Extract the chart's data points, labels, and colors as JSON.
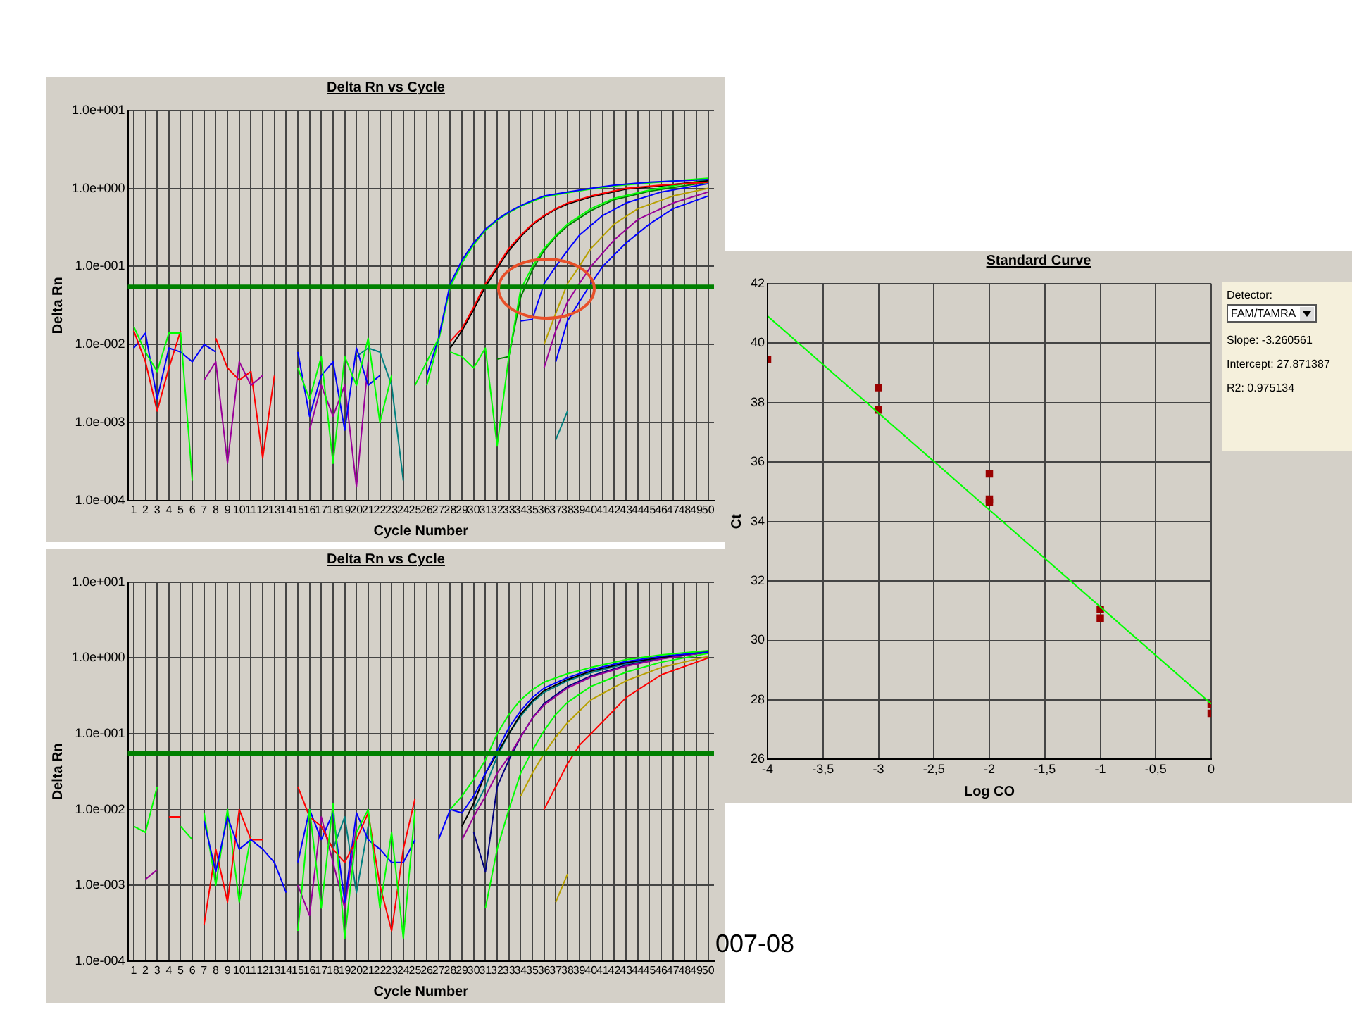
{
  "chart_data": [
    {
      "type": "line",
      "title": "Delta Rn vs Cycle",
      "xlabel": "Cycle Number",
      "ylabel": "Delta Rn",
      "log": "y",
      "grid": true,
      "legend": false,
      "marker": "none",
      "xlim": [
        0.5,
        50.5
      ],
      "xticks": [
        1,
        2,
        3,
        4,
        5,
        6,
        7,
        8,
        9,
        10,
        11,
        12,
        13,
        14,
        15,
        16,
        17,
        18,
        19,
        20,
        21,
        22,
        23,
        24,
        25,
        26,
        27,
        28,
        29,
        30,
        31,
        32,
        33,
        34,
        35,
        36,
        37,
        38,
        39,
        40,
        41,
        42,
        43,
        44,
        45,
        46,
        47,
        48,
        49,
        50
      ],
      "ylim": [
        0.0001,
        10
      ],
      "yticks": [
        {
          "value": 0.0001,
          "label": "1.0e-004"
        },
        {
          "value": 0.001,
          "label": "1.0e-003"
        },
        {
          "value": 0.01,
          "label": "1.0e-002"
        },
        {
          "value": 0.1,
          "label": "1.0e-001"
        },
        {
          "value": 1,
          "label": "1.0e+000"
        },
        {
          "value": 10,
          "label": "1.0e+001"
        }
      ],
      "ref_lines": [
        {
          "axis": "y",
          "value": 0.055,
          "color": "#008000"
        }
      ],
      "series": [
        {
          "color": "#00ff00",
          "x": [
            1,
            2,
            3,
            4,
            5,
            6
          ],
          "values": [
            0.017,
            0.008,
            0.0045,
            0.014,
            0.014,
            0.00018
          ]
        },
        {
          "color": "#ff0000",
          "x": [
            1,
            2,
            3,
            4,
            5
          ],
          "values": [
            0.015,
            0.006,
            0.0014,
            0.005,
            0.015
          ]
        },
        {
          "color": "#0000ff",
          "x": [
            1,
            2,
            3,
            4,
            5,
            6,
            7,
            8
          ],
          "values": [
            0.009,
            0.014,
            0.002,
            0.009,
            0.008,
            0.006,
            0.01,
            0.008
          ]
        },
        {
          "color": "#990099",
          "x": [
            7,
            8,
            9,
            10,
            11,
            12
          ],
          "values": [
            0.0035,
            0.006,
            0.0003,
            0.006,
            0.003,
            0.004
          ]
        },
        {
          "color": "#ff0000",
          "x": [
            8,
            9,
            10,
            11,
            12,
            13
          ],
          "values": [
            0.012,
            0.005,
            0.0035,
            0.0045,
            0.00035,
            0.004
          ]
        },
        {
          "color": "#00ff00",
          "x": [
            15,
            16,
            17,
            18,
            19,
            20,
            21,
            22,
            23
          ],
          "values": [
            0.005,
            0.002,
            0.007,
            0.0003,
            0.007,
            0.003,
            0.012,
            0.001,
            0.004
          ]
        },
        {
          "color": "#0000ff",
          "x": [
            15,
            16,
            17,
            18,
            19,
            20,
            21,
            22
          ],
          "values": [
            0.008,
            0.0012,
            0.004,
            0.006,
            0.0008,
            0.009,
            0.003,
            0.004
          ]
        },
        {
          "color": "#990099",
          "x": [
            16,
            17,
            18,
            19,
            20,
            21
          ],
          "values": [
            0.0008,
            0.003,
            0.0012,
            0.003,
            0.00015,
            0.006
          ]
        },
        {
          "color": "#008080",
          "x": [
            20,
            21,
            22,
            23,
            24
          ],
          "values": [
            0.007,
            0.009,
            0.008,
            0.003,
            0.00018
          ]
        },
        {
          "color": "#00ff00",
          "x": [
            25,
            26,
            27
          ],
          "values": [
            0.003,
            0.006,
            0.012
          ]
        },
        {
          "color": "#0000ff",
          "x": [
            26,
            27,
            28,
            29,
            30,
            31,
            32,
            33,
            34,
            35,
            36,
            38,
            40,
            42,
            45,
            50
          ],
          "values": [
            0.004,
            0.012,
            0.06,
            0.12,
            0.2,
            0.3,
            0.4,
            0.5,
            0.6,
            0.7,
            0.8,
            0.9,
            1.0,
            1.1,
            1.2,
            1.3
          ]
        },
        {
          "color": "#00ff00",
          "x": [
            26,
            27,
            28,
            29,
            30,
            31,
            32,
            33,
            34,
            35,
            36,
            38,
            40,
            42,
            45,
            50
          ],
          "values": [
            0.003,
            0.011,
            0.055,
            0.11,
            0.19,
            0.29,
            0.39,
            0.49,
            0.59,
            0.68,
            0.78,
            0.88,
            0.98,
            1.08,
            1.18,
            1.35
          ]
        },
        {
          "color": "#ff0000",
          "x": [
            28,
            29,
            30,
            31,
            32,
            33,
            34,
            35,
            36,
            37,
            38,
            40,
            43,
            46,
            50
          ],
          "values": [
            0.011,
            0.016,
            0.03,
            0.06,
            0.1,
            0.17,
            0.25,
            0.35,
            0.45,
            0.55,
            0.65,
            0.8,
            1.0,
            1.1,
            1.2
          ]
        },
        {
          "color": "#000000",
          "x": [
            28,
            29,
            30,
            31,
            32,
            33,
            34,
            35,
            36,
            37,
            38,
            40,
            43,
            46,
            50
          ],
          "values": [
            0.009,
            0.015,
            0.028,
            0.055,
            0.095,
            0.16,
            0.24,
            0.34,
            0.44,
            0.54,
            0.63,
            0.78,
            0.98,
            1.08,
            1.25
          ]
        },
        {
          "color": "#00ff00",
          "x": [
            28,
            29,
            30,
            31,
            32,
            33,
            34,
            35,
            36,
            37,
            38,
            40,
            42,
            45,
            50
          ],
          "values": [
            0.008,
            0.007,
            0.005,
            0.009,
            0.0005,
            0.007,
            0.05,
            0.1,
            0.17,
            0.25,
            0.35,
            0.55,
            0.75,
            0.95,
            1.3
          ]
        },
        {
          "color": "#008000",
          "x": [
            32,
            33,
            34,
            35,
            36,
            37,
            38,
            40,
            42,
            45,
            50
          ],
          "values": [
            0.0065,
            0.007,
            0.04,
            0.09,
            0.16,
            0.24,
            0.33,
            0.52,
            0.72,
            0.92,
            1.2
          ]
        },
        {
          "color": "#0000ff",
          "x": [
            34,
            35,
            36,
            37,
            38,
            39,
            41,
            43,
            46,
            50
          ],
          "values": [
            0.02,
            0.021,
            0.06,
            0.1,
            0.16,
            0.25,
            0.45,
            0.65,
            0.9,
            1.15
          ]
        },
        {
          "color": "#b8a000",
          "x": [
            36,
            37,
            38,
            39,
            40,
            42,
            44,
            47,
            50
          ],
          "values": [
            0.01,
            0.025,
            0.06,
            0.1,
            0.17,
            0.35,
            0.55,
            0.8,
            1.0
          ]
        },
        {
          "color": "#990099",
          "x": [
            36,
            37,
            38,
            39,
            40,
            42,
            44,
            47,
            50
          ],
          "values": [
            0.005,
            0.015,
            0.035,
            0.06,
            0.1,
            0.22,
            0.4,
            0.65,
            0.9
          ]
        },
        {
          "color": "#0000ff",
          "x": [
            37,
            38,
            39,
            40,
            41,
            43,
            45,
            47,
            50
          ],
          "values": [
            0.006,
            0.02,
            0.035,
            0.06,
            0.1,
            0.2,
            0.35,
            0.55,
            0.8
          ]
        },
        {
          "color": "#008080",
          "x": [
            37,
            38
          ],
          "values": [
            0.0006,
            0.0014
          ]
        }
      ]
    },
    {
      "type": "line",
      "title": "Delta Rn vs Cycle",
      "xlabel": "Cycle Number",
      "ylabel": "Delta Rn",
      "log": "y",
      "grid": true,
      "legend": false,
      "marker": "none",
      "xlim": [
        0.5,
        50.5
      ],
      "xticks": [
        1,
        2,
        3,
        4,
        5,
        6,
        7,
        8,
        9,
        10,
        11,
        12,
        13,
        14,
        15,
        16,
        17,
        18,
        19,
        20,
        21,
        22,
        23,
        24,
        25,
        26,
        27,
        28,
        29,
        30,
        31,
        32,
        33,
        34,
        35,
        36,
        37,
        38,
        39,
        40,
        41,
        42,
        43,
        44,
        45,
        46,
        47,
        48,
        49,
        50
      ],
      "ylim": [
        0.0001,
        10
      ],
      "yticks": [
        {
          "value": 0.0001,
          "label": "1.0e-004"
        },
        {
          "value": 0.001,
          "label": "1.0e-003"
        },
        {
          "value": 0.01,
          "label": "1.0e-002"
        },
        {
          "value": 0.1,
          "label": "1.0e-001"
        },
        {
          "value": 1,
          "label": "1.0e+000"
        },
        {
          "value": 10,
          "label": "1.0e+001"
        }
      ],
      "ref_lines": [
        {
          "axis": "y",
          "value": 0.055,
          "color": "#008000"
        }
      ],
      "annotations": [
        "007-08"
      ],
      "series": [
        {
          "color": "#00ff00",
          "x": [
            1,
            2,
            3
          ],
          "values": [
            0.006,
            0.005,
            0.02
          ]
        },
        {
          "color": "#990099",
          "x": [
            2,
            3
          ],
          "values": [
            0.0012,
            0.0016
          ]
        },
        {
          "color": "#ff0000",
          "x": [
            4,
            5
          ],
          "values": [
            0.008,
            0.008
          ]
        },
        {
          "color": "#00ff00",
          "x": [
            5,
            6
          ],
          "values": [
            0.006,
            0.004
          ]
        },
        {
          "color": "#0000ff",
          "x": [
            7,
            8,
            9,
            10,
            11,
            12,
            13,
            14
          ],
          "values": [
            0.007,
            0.0015,
            0.008,
            0.003,
            0.004,
            0.003,
            0.002,
            0.0008
          ]
        },
        {
          "color": "#ff0000",
          "x": [
            7,
            8,
            9,
            10,
            11,
            12
          ],
          "values": [
            0.0003,
            0.003,
            0.0006,
            0.01,
            0.004,
            0.004
          ]
        },
        {
          "color": "#00ff00",
          "x": [
            7,
            8,
            9,
            10,
            11
          ],
          "values": [
            0.009,
            0.001,
            0.01,
            0.0006,
            0.0045
          ]
        },
        {
          "color": "#00ff00",
          "x": [
            15,
            16,
            17,
            18,
            19,
            20,
            21,
            22,
            23,
            24,
            25
          ],
          "values": [
            0.00025,
            0.01,
            0.0005,
            0.012,
            0.0002,
            0.005,
            0.01,
            0.0005,
            0.005,
            0.0002,
            0.01
          ]
        },
        {
          "color": "#ff0000",
          "x": [
            15,
            16,
            17,
            18,
            19,
            20,
            21,
            22,
            23,
            24,
            25
          ],
          "values": [
            0.02,
            0.008,
            0.006,
            0.003,
            0.002,
            0.004,
            0.009,
            0.001,
            0.00025,
            0.003,
            0.014
          ]
        },
        {
          "color": "#0000ff",
          "x": [
            15,
            16,
            17,
            18,
            19,
            20,
            21,
            22,
            23,
            24,
            25
          ],
          "values": [
            0.002,
            0.01,
            0.004,
            0.009,
            0.0006,
            0.009,
            0.004,
            0.003,
            0.002,
            0.002,
            0.004
          ]
        },
        {
          "color": "#990099",
          "x": [
            15,
            16,
            17,
            18,
            19,
            20
          ],
          "values": [
            0.001,
            0.0004,
            0.008,
            0.002,
            0.0005,
            0.006
          ]
        },
        {
          "color": "#008080",
          "x": [
            17,
            18,
            19,
            20,
            21
          ],
          "values": [
            0.006,
            0.003,
            0.008,
            0.0008,
            0.006
          ]
        },
        {
          "color": "#00ff00",
          "x": [
            28,
            29,
            30,
            31,
            32,
            33,
            34,
            35,
            36,
            38,
            40,
            43,
            46,
            50
          ],
          "values": [
            0.01,
            0.015,
            0.025,
            0.045,
            0.1,
            0.18,
            0.28,
            0.38,
            0.48,
            0.62,
            0.75,
            0.95,
            1.1,
            1.25
          ]
        },
        {
          "color": "#0000ff",
          "x": [
            27,
            28,
            29,
            30,
            31,
            32,
            33,
            34,
            35,
            36,
            38,
            40,
            43,
            46,
            50
          ],
          "values": [
            0.004,
            0.01,
            0.009,
            0.015,
            0.03,
            0.06,
            0.12,
            0.2,
            0.3,
            0.4,
            0.55,
            0.7,
            0.9,
            1.05,
            1.2
          ]
        },
        {
          "color": "#000000",
          "x": [
            29,
            30,
            31,
            32,
            33,
            34,
            35,
            36,
            38,
            40,
            43,
            46,
            50
          ],
          "values": [
            0.006,
            0.012,
            0.03,
            0.055,
            0.1,
            0.18,
            0.27,
            0.37,
            0.52,
            0.67,
            0.87,
            1.02,
            1.22
          ]
        },
        {
          "color": "#990099",
          "x": [
            29,
            30,
            31,
            32,
            33,
            34,
            35,
            36,
            38,
            40,
            43,
            46,
            50
          ],
          "values": [
            0.004,
            0.008,
            0.015,
            0.03,
            0.05,
            0.09,
            0.16,
            0.24,
            0.4,
            0.56,
            0.78,
            0.97,
            1.2
          ]
        },
        {
          "color": "#000080",
          "x": [
            30,
            31,
            32,
            33,
            34,
            35,
            36,
            38,
            40,
            43,
            46,
            50
          ],
          "values": [
            0.005,
            0.0015,
            0.02,
            0.045,
            0.09,
            0.16,
            0.25,
            0.42,
            0.58,
            0.8,
            0.98,
            1.2
          ]
        },
        {
          "color": "#00ff00",
          "x": [
            31,
            32,
            33,
            34,
            35,
            36,
            37,
            38,
            40,
            43,
            46,
            50
          ],
          "values": [
            0.0005,
            0.003,
            0.01,
            0.03,
            0.06,
            0.11,
            0.18,
            0.26,
            0.42,
            0.65,
            0.88,
            1.15
          ]
        },
        {
          "color": "#b8a000",
          "x": [
            34,
            35,
            36,
            37,
            38,
            40,
            43,
            46,
            50
          ],
          "values": [
            0.015,
            0.03,
            0.055,
            0.09,
            0.14,
            0.28,
            0.5,
            0.75,
            1.05
          ]
        },
        {
          "color": "#ff0000",
          "x": [
            36,
            37,
            38,
            39,
            40,
            43,
            46,
            50
          ],
          "values": [
            0.01,
            0.02,
            0.04,
            0.07,
            0.1,
            0.3,
            0.6,
            1.0
          ]
        },
        {
          "color": "#008080",
          "x": [
            30,
            31,
            32,
            33,
            34,
            35,
            36,
            38,
            40,
            43,
            46,
            50
          ],
          "values": [
            0.01,
            0.02,
            0.05,
            0.1,
            0.17,
            0.26,
            0.35,
            0.5,
            0.64,
            0.84,
            1.0,
            1.18
          ]
        },
        {
          "color": "#b8a000",
          "x": [
            37,
            38
          ],
          "values": [
            0.0006,
            0.0014
          ]
        }
      ]
    },
    {
      "type": "scatter",
      "title": "Standard Curve",
      "xlabel": "Log CO",
      "ylabel": "Ct",
      "grid": true,
      "legend": false,
      "xlim": [
        -4,
        0
      ],
      "xticks": [
        -4,
        {
          "value": -3.5,
          "label": "-3,5"
        },
        -3,
        {
          "value": -2.5,
          "label": "-2,5"
        },
        -2,
        {
          "value": -1.5,
          "label": "-1,5"
        },
        -1,
        {
          "value": -0.5,
          "label": "-0,5"
        },
        0
      ],
      "ylim": [
        26,
        42
      ],
      "yticks": [
        26,
        28,
        30,
        32,
        34,
        36,
        38,
        40,
        42
      ],
      "annotations": [
        "Detector:",
        "FAM/TAMRA",
        "Slope: -3.260561",
        "Intercept: 27.871387",
        "R2: 0.975134"
      ],
      "series": [
        {
          "type": "line",
          "marker": "none",
          "color": "#00ff00",
          "x": [
            -4,
            0
          ],
          "values": [
            40.91,
            27.87
          ]
        },
        {
          "type": "scatter",
          "marker": "square",
          "color": "#990000",
          "x": [
            -4,
            -3,
            -3,
            -2,
            -2,
            -2,
            -1,
            -1,
            0,
            0
          ],
          "values": [
            39.45,
            38.5,
            37.75,
            35.6,
            34.75,
            34.65,
            31.05,
            30.75,
            27.85,
            27.55
          ]
        }
      ]
    }
  ]
}
